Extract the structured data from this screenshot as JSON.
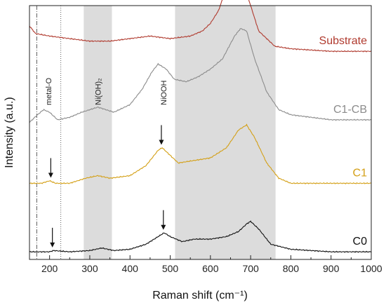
{
  "chart_data": {
    "type": "line",
    "xlabel": "Raman shift (cm⁻¹)",
    "ylabel": "Intensity (a.u.)",
    "xlim": [
      150,
      1000
    ],
    "xticks": [
      200,
      300,
      400,
      500,
      600,
      700,
      800,
      900,
      1000
    ],
    "y_ticks_shown": false,
    "shaded_regions": [
      [
        285,
        355
      ],
      [
        512,
        762
      ]
    ],
    "reference_lines": [
      168,
      228
    ],
    "annotations": [
      {
        "text": "metal-O",
        "x": 197
      },
      {
        "text": "Ni(OH)₂",
        "x": 320
      },
      {
        "text": "NiOOH",
        "x": 483
      }
    ],
    "arrows": [
      {
        "series": "C1",
        "x": 203
      },
      {
        "series": "C1",
        "x": 478
      },
      {
        "series": "C0",
        "x": 207
      },
      {
        "series": "C0",
        "x": 483
      }
    ],
    "series": [
      {
        "name": "Substrate",
        "color": "#b03a2e",
        "offset": 0.8,
        "x": [
          150,
          165,
          200,
          250,
          300,
          350,
          400,
          450,
          500,
          550,
          580,
          600,
          620,
          640,
          655,
          665,
          680,
          700,
          720,
          760,
          800,
          900,
          1000
        ],
        "y": [
          0.12,
          0.09,
          0.08,
          0.07,
          0.06,
          0.06,
          0.07,
          0.08,
          0.07,
          0.08,
          0.1,
          0.13,
          0.18,
          0.27,
          0.33,
          0.34,
          0.3,
          0.2,
          0.1,
          0.04,
          0.03,
          0.02,
          0.02
        ]
      },
      {
        "name": "C1-CB",
        "color": "#8c8c8c",
        "offset": 0.54,
        "x": [
          150,
          170,
          185,
          200,
          220,
          250,
          280,
          300,
          320,
          340,
          360,
          400,
          430,
          455,
          470,
          490,
          510,
          540,
          570,
          600,
          630,
          660,
          675,
          690,
          710,
          740,
          770,
          800,
          900,
          1000
        ],
        "y": [
          0.0,
          0.03,
          0.05,
          0.04,
          0.01,
          0.02,
          0.04,
          0.05,
          0.06,
          0.05,
          0.04,
          0.07,
          0.13,
          0.2,
          0.23,
          0.21,
          0.17,
          0.16,
          0.18,
          0.21,
          0.25,
          0.34,
          0.37,
          0.36,
          0.25,
          0.12,
          0.05,
          0.03,
          0.01,
          0.01
        ]
      },
      {
        "name": "C1",
        "color": "#d4a017",
        "offset": 0.28,
        "x": [
          150,
          180,
          200,
          215,
          250,
          290,
          320,
          350,
          400,
          440,
          470,
          480,
          500,
          520,
          560,
          600,
          640,
          670,
          690,
          710,
          740,
          770,
          800,
          900,
          1000
        ],
        "y": [
          0.02,
          0.02,
          0.03,
          0.02,
          0.02,
          0.04,
          0.05,
          0.04,
          0.05,
          0.09,
          0.15,
          0.16,
          0.13,
          0.1,
          0.11,
          0.12,
          0.16,
          0.23,
          0.25,
          0.2,
          0.1,
          0.04,
          0.02,
          0.02,
          0.02
        ]
      },
      {
        "name": "C0",
        "color": "#111111",
        "offset": 0.02,
        "x": [
          150,
          200,
          210,
          250,
          300,
          330,
          360,
          400,
          440,
          470,
          485,
          500,
          530,
          560,
          600,
          640,
          670,
          690,
          700,
          720,
          750,
          800,
          900,
          1000
        ],
        "y": [
          0.01,
          0.01,
          0.015,
          0.01,
          0.015,
          0.025,
          0.015,
          0.02,
          0.04,
          0.07,
          0.085,
          0.07,
          0.05,
          0.06,
          0.06,
          0.07,
          0.09,
          0.12,
          0.13,
          0.1,
          0.04,
          0.02,
          0.01,
          0.01
        ]
      }
    ]
  }
}
